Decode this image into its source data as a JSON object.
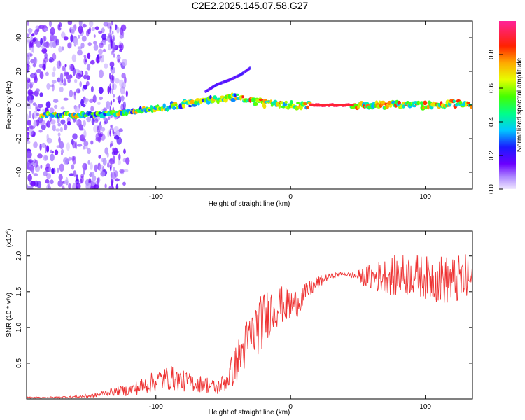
{
  "title": "C2E2.2025.145.07.58.G27",
  "chart_data": [
    {
      "type": "heatmap",
      "xlabel": "Height of straight line (km)",
      "ylabel": "Frequency (Hz)",
      "xlim": [
        -196,
        135
      ],
      "ylim": [
        -50,
        50
      ],
      "x_ticks": [
        "-100",
        "0",
        "100"
      ],
      "y_ticks": [
        "40",
        "20",
        "0",
        "-20",
        "-40"
      ],
      "colorbar": {
        "label": "Normalized spectral amplitude",
        "range": [
          0,
          1
        ],
        "ticks": [
          "0.0",
          "0.2",
          "0.4",
          "0.6",
          "0.8"
        ]
      },
      "ridge": {
        "x": [
          -180,
          -150,
          -130,
          -110,
          -90,
          -75,
          -60,
          -50,
          -40,
          -30,
          -20,
          -10,
          0,
          15,
          45,
          60,
          80,
          100,
          120,
          135
        ],
        "y": [
          -6,
          -6,
          -5,
          -3,
          -1,
          1,
          3,
          4,
          5,
          3,
          1,
          0,
          0,
          0,
          0,
          0,
          0,
          0,
          1,
          0
        ]
      },
      "harmonic": {
        "x": [
          -63,
          -55,
          -45,
          -37,
          -30
        ],
        "y": [
          8,
          12,
          15,
          18,
          22
        ]
      },
      "grid": false,
      "legend": "none"
    },
    {
      "type": "line",
      "xlabel": "Height of straight line (km)",
      "ylabel": "SNR (10 * v/v)",
      "y_scale_note": "(x10",
      "y_scale_exp": "4",
      "y_scale_close": ")",
      "xlim": [
        -196,
        135
      ],
      "ylim": [
        0,
        2.35
      ],
      "x_ticks": [
        "-100",
        "0",
        "100"
      ],
      "y_ticks": [
        "2.0",
        "1.5",
        "1.0",
        "0.5"
      ],
      "series": [
        {
          "color": "#ee3333",
          "x": [
            -196,
            -180,
            -160,
            -145,
            -135,
            -120,
            -110,
            -100,
            -90,
            -80,
            -70,
            -62,
            -55,
            -48,
            -40,
            -32,
            -25,
            -20,
            -15,
            -10,
            -5,
            0,
            5,
            10,
            15,
            20,
            25,
            30,
            35,
            40,
            45,
            50,
            60,
            70,
            80,
            90,
            100,
            110,
            120,
            130,
            135
          ],
          "y": [
            0.02,
            0.02,
            0.03,
            0.05,
            0.1,
            0.12,
            0.18,
            0.25,
            0.3,
            0.25,
            0.22,
            0.2,
            0.15,
            0.25,
            0.5,
            0.8,
            1.0,
            1.1,
            1.25,
            1.3,
            1.32,
            1.3,
            1.35,
            1.45,
            1.55,
            1.62,
            1.68,
            1.72,
            1.74,
            1.75,
            1.73,
            1.72,
            1.7,
            1.72,
            1.72,
            1.75,
            1.7,
            1.68,
            1.65,
            1.68,
            1.65
          ],
          "noise": [
            0.01,
            0.01,
            0.02,
            0.03,
            0.05,
            0.08,
            0.12,
            0.15,
            0.18,
            0.15,
            0.12,
            0.12,
            0.1,
            0.15,
            0.3,
            0.35,
            0.4,
            0.4,
            0.35,
            0.3,
            0.25,
            0.25,
            0.2,
            0.15,
            0.12,
            0.1,
            0.06,
            0.04,
            0.03,
            0.03,
            0.04,
            0.08,
            0.2,
            0.25,
            0.3,
            0.3,
            0.3,
            0.35,
            0.35,
            0.35,
            0.35
          ]
        }
      ],
      "grid": false,
      "legend": "none"
    }
  ]
}
